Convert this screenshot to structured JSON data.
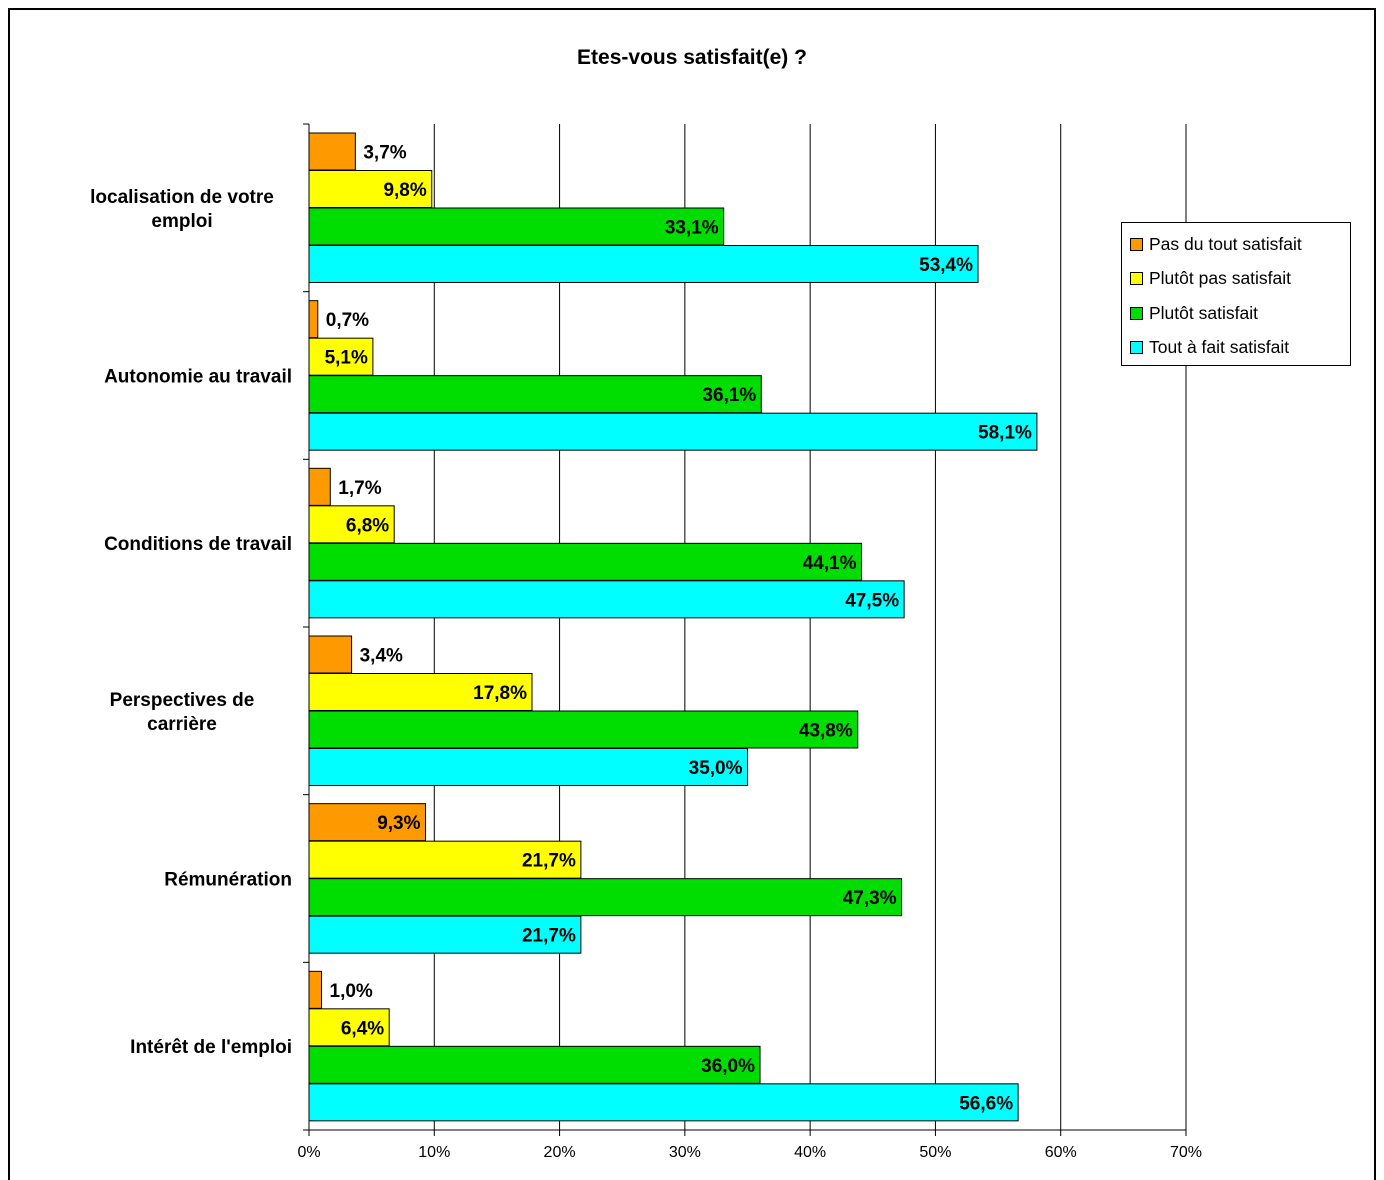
{
  "chart_data": {
    "type": "bar",
    "orientation": "horizontal",
    "title": "Etes-vous satisfait(e) ?",
    "xlabel": "",
    "ylabel": "",
    "xlim": [
      0,
      70
    ],
    "tick_labels": [
      "0%",
      "10%",
      "20%",
      "30%",
      "40%",
      "50%",
      "60%",
      "70%"
    ],
    "categories": [
      "localisation de votre emploi",
      "Autonomie au travail",
      "Conditions de travail",
      "Perspectives de carrière",
      "Rémunération",
      "Intérêt de l'emploi"
    ],
    "series": [
      {
        "name": "Pas du tout satisfait",
        "color": "#FF9900",
        "values": [
          3.7,
          0.7,
          1.7,
          3.4,
          9.3,
          1.0
        ],
        "labels": [
          "3,7%",
          "0,7%",
          "1,7%",
          "3,4%",
          "9,3%",
          "1,0%"
        ]
      },
      {
        "name": "Plutôt pas satisfait",
        "color": "#FFFF00",
        "values": [
          9.8,
          5.1,
          6.8,
          17.8,
          21.7,
          6.4
        ],
        "labels": [
          "9,8%",
          "5,1%",
          "6,8%",
          "17,8%",
          "21,7%",
          "6,4%"
        ]
      },
      {
        "name": "Plutôt satisfait",
        "color": "#00DD00",
        "values": [
          33.1,
          36.1,
          44.1,
          43.8,
          47.3,
          36.0
        ],
        "labels": [
          "33,1%",
          "36,1%",
          "44,1%",
          "43,8%",
          "47,3%",
          "36,0%"
        ]
      },
      {
        "name": "Tout à fait satisfait",
        "color": "#00FFFF",
        "values": [
          53.4,
          58.1,
          47.5,
          35.0,
          21.7,
          56.6
        ],
        "labels": [
          "53,4%",
          "58,1%",
          "47,5%",
          "35,0%",
          "21,7%",
          "56,6%"
        ]
      }
    ],
    "grid": true,
    "legend_position": "right"
  }
}
